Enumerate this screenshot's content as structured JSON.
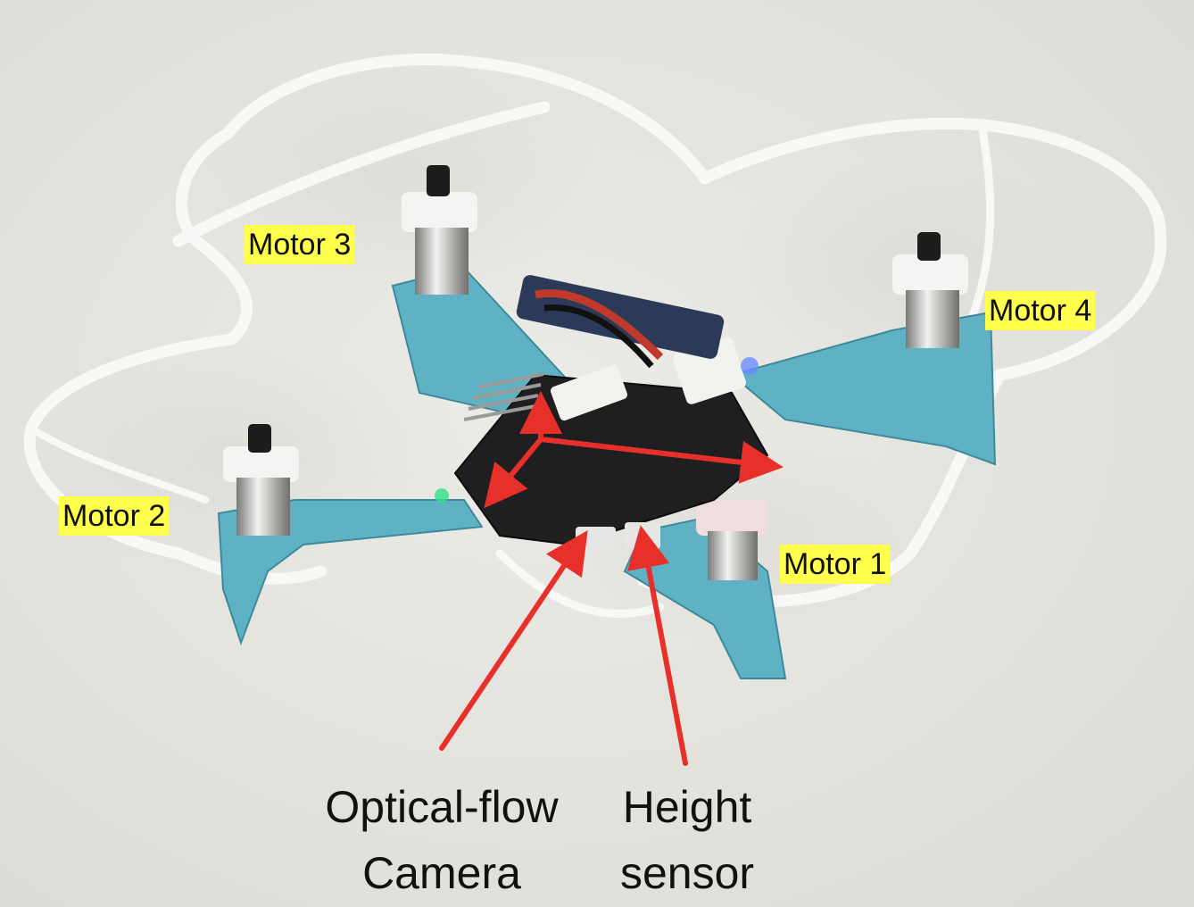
{
  "labels": {
    "motor_1": "Motor 1",
    "motor_2": "Motor 2",
    "motor_3": "Motor 3",
    "motor_4": "Motor 4"
  },
  "captions": {
    "optical_flow_line1": "Optical-flow",
    "optical_flow_line2": "Camera",
    "height_line1": "Height",
    "height_line2": "sensor"
  },
  "colors": {
    "label_highlight": "#ffff4d",
    "arrow": "#e8302a",
    "arm": "#5fb2c3",
    "guard": "#f7f7f6",
    "board": "#1f1f22",
    "ceiling": "#e9e8e4"
  }
}
